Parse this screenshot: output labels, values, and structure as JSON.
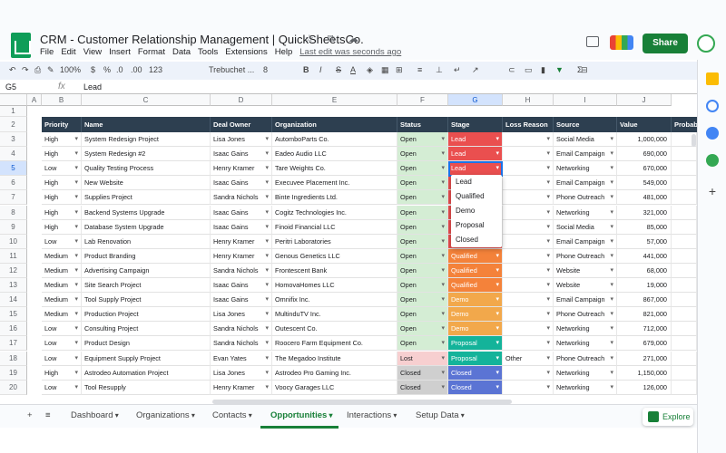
{
  "window": {
    "doc_title": "CRM - Customer Relationship Management | QuickSheetsCo.",
    "title_icons": "☆ ⧉ ☁",
    "saved_text": "Last edit was seconds ago",
    "share_label": "Share"
  },
  "menu": [
    "File",
    "Edit",
    "View",
    "Insert",
    "Format",
    "Data",
    "Tools",
    "Extensions",
    "Help"
  ],
  "toolbar": {
    "zoom": "100%",
    "currency": "$",
    "percent": "%",
    "decimals1": ".0",
    "decimals2": ".00",
    "number_format": "123",
    "font": "Trebuchet ...",
    "size": "8",
    "bold": "B",
    "italic": "I",
    "strike": "S",
    "textcolor": "A",
    "sum": "Σ"
  },
  "formula": {
    "cell": "G5",
    "fx": "fx",
    "value": "Lead"
  },
  "columns": [
    "A",
    "B",
    "C",
    "D",
    "E",
    "F",
    "G",
    "H",
    "I",
    "J"
  ],
  "headers": [
    "Priority",
    "Name",
    "Deal Owner",
    "Organization",
    "Status",
    "Stage",
    "Loss Reason",
    "Source",
    "Value",
    "Probab"
  ],
  "rownums": [
    "1",
    "2",
    "3",
    "4",
    "5",
    "6",
    "7",
    "8",
    "9",
    "10",
    "11",
    "12",
    "13",
    "14",
    "15",
    "16",
    "17",
    "18",
    "19",
    "20"
  ],
  "rows": [
    [
      "High",
      "System Redesign Project",
      "Lisa Jones",
      "AutomboParts Co.",
      "Open",
      "Lead",
      "",
      "Social Media",
      "1,000,000"
    ],
    [
      "High",
      "System Redesign #2",
      "Isaac Gains",
      "Eadeo Audio LLC",
      "Open",
      "Lead",
      "",
      "Email Campaign",
      "690,000"
    ],
    [
      "Low",
      "Quality Testing Process",
      "Henry Kramer",
      "Tare Weights Co.",
      "Open",
      "Lead",
      "",
      "Networking",
      "670,000"
    ],
    [
      "High",
      "New Website",
      "Isaac Gains",
      "Execuvee Placement Inc.",
      "Open",
      "Lead",
      "",
      "Email Campaign",
      "549,000"
    ],
    [
      "High",
      "Supplies Project",
      "Sandra Nichols",
      "Binte Ingredients Ltd.",
      "Open",
      "Lead",
      "",
      "Phone Outreach",
      "481,000"
    ],
    [
      "High",
      "Backend Systems Upgrade",
      "Isaac Gains",
      "Cogitz Technologies Inc.",
      "Open",
      "Lead",
      "",
      "Networking",
      "321,000"
    ],
    [
      "High",
      "Database System Upgrade",
      "Isaac Gains",
      "Finoid Financial LLC",
      "Open",
      "Lead",
      "",
      "Social Media",
      "85,000"
    ],
    [
      "Low",
      "Lab Renovation",
      "Henry Kramer",
      "Peritri Laboratories",
      "Open",
      "Lead",
      "",
      "Email Campaign",
      "57,000"
    ],
    [
      "Medium",
      "Product Branding",
      "Henry Kramer",
      "Genous Genetics LLC",
      "Open",
      "Qualified",
      "",
      "Phone Outreach",
      "441,000"
    ],
    [
      "Medium",
      "Advertising Campaign",
      "Sandra Nichols",
      "Frontescent Bank",
      "Open",
      "Qualified",
      "",
      "Website",
      "68,000"
    ],
    [
      "Medium",
      "Site Search Project",
      "Isaac Gains",
      "HomovaHomes LLC",
      "Open",
      "Qualified",
      "",
      "Website",
      "19,000"
    ],
    [
      "Medium",
      "Tool Supply Project",
      "Isaac Gains",
      "Omnifix Inc.",
      "Open",
      "Demo",
      "",
      "Email Campaign",
      "867,000"
    ],
    [
      "Medium",
      "Production Project",
      "Lisa Jones",
      "MultinduTV Inc.",
      "Open",
      "Demo",
      "",
      "Phone Outreach",
      "821,000"
    ],
    [
      "Low",
      "Consulting Project",
      "Sandra Nichols",
      "Outescent Co.",
      "Open",
      "Demo",
      "",
      "Networking",
      "712,000"
    ],
    [
      "Low",
      "Product Design",
      "Sandra Nichols",
      "Roocero Farm Equipment Co.",
      "Open",
      "Proposal",
      "",
      "Networking",
      "679,000"
    ],
    [
      "Low",
      "Equipment Supply Project",
      "Evan Yates",
      "The Megadoo Institute",
      "Lost",
      "Proposal",
      "Other",
      "Phone Outreach",
      "271,000"
    ],
    [
      "High",
      "Astrodeo Automation Project",
      "Lisa Jones",
      "Astrodeo Pro Gaming Inc.",
      "Closed",
      "Closed",
      "",
      "Networking",
      "1,150,000"
    ],
    [
      "Low",
      "Tool Resupply",
      "Henry Kramer",
      "Voocy Garages LLC",
      "Closed",
      "Closed",
      "",
      "Networking",
      "126,000"
    ]
  ],
  "stage_colors": {
    "Lead": "#ea4f4f",
    "Qualified": "#f4823a",
    "Demo": "#f2a84b",
    "Proposal": "#14b39a",
    "Closed": "#5b74d4"
  },
  "status_colors": {
    "Open": "#d4edd4",
    "Lost": "#f7cfd0",
    "Closed": "#cfcfcf"
  },
  "dropdown": [
    "Lead",
    "Qualified",
    "Demo",
    "Proposal",
    "Closed"
  ],
  "sheet_tabs": [
    "Dashboard",
    "Organizations",
    "Contacts",
    "Opportunities",
    "Interactions",
    "Setup Data"
  ],
  "explore_label": "Explore"
}
